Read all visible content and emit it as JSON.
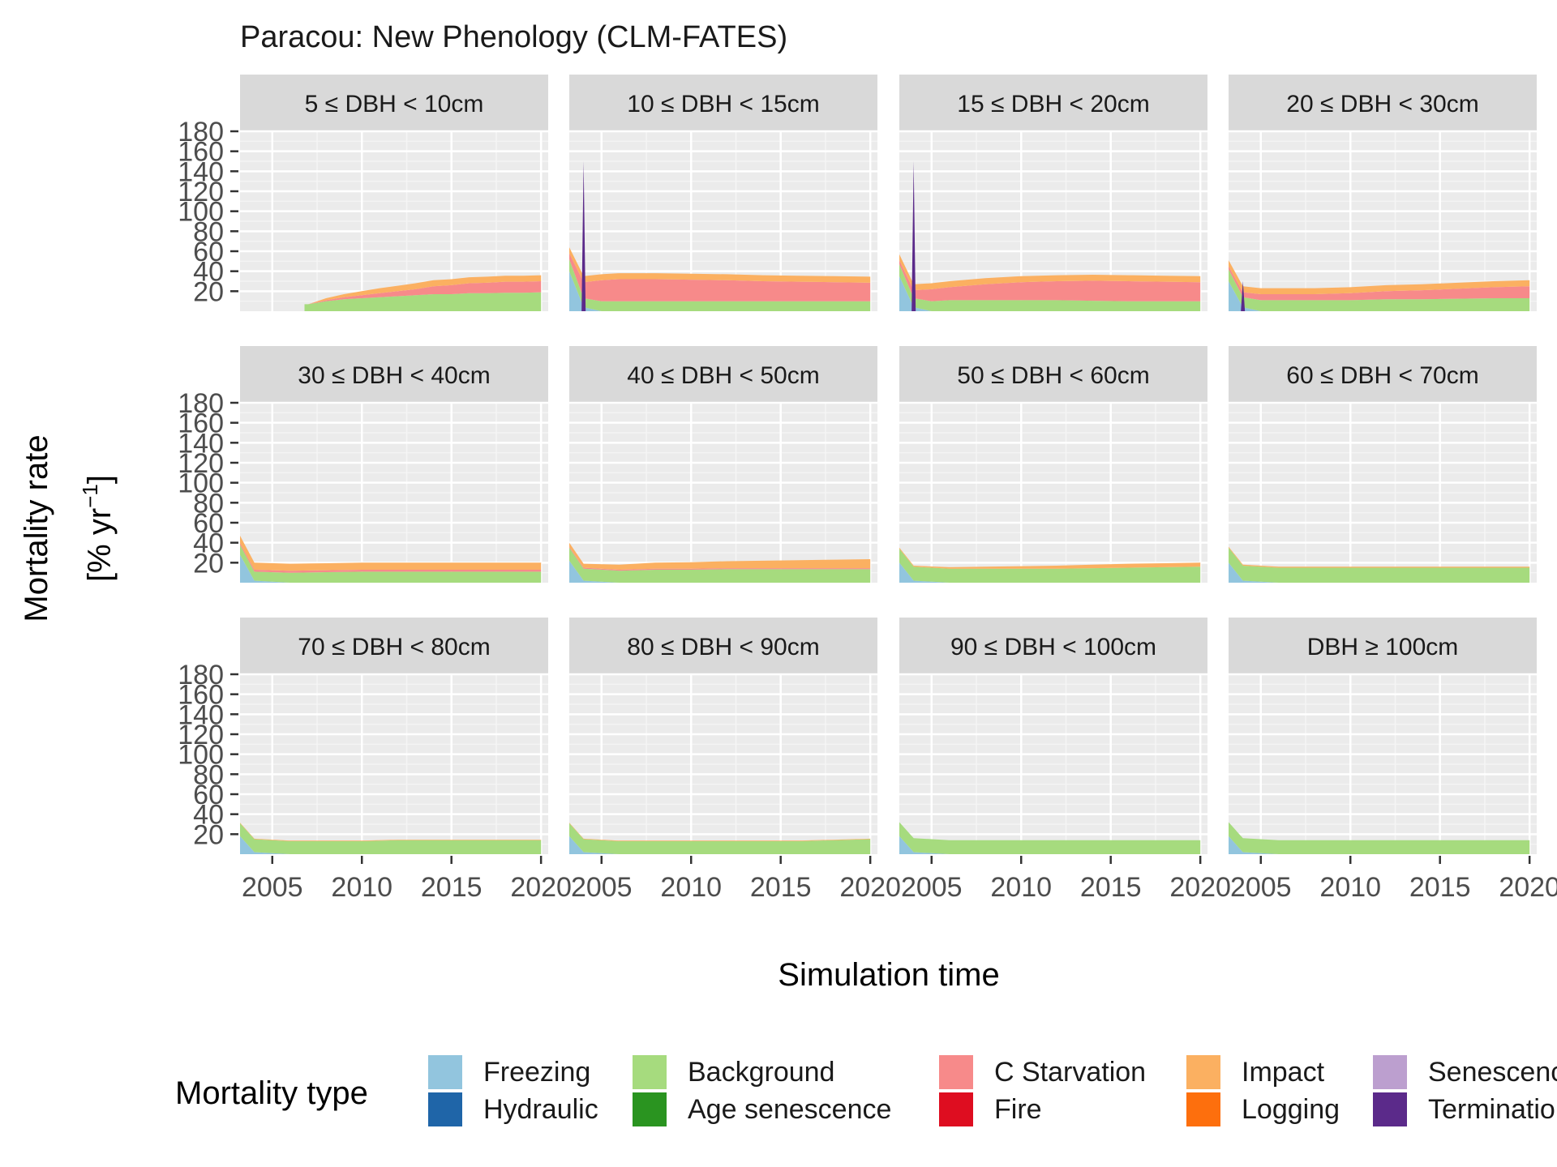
{
  "chart_data": {
    "type": "area",
    "stacked": true,
    "title": "Paracou: New Phenology (CLM-FATES)",
    "xlabel": "Simulation time",
    "ylabel_line1": "Mortality rate",
    "ylabel_line2": "[% yr",
    "ylabel_sup": "−1",
    "ylabel_end": "]",
    "x_ticks": [
      "2005",
      "2010",
      "2015",
      "2020"
    ],
    "x_tick_values": [
      2005,
      2010,
      2015,
      2020
    ],
    "xlim": [
      2003.2,
      2020.4
    ],
    "y_ticks": [
      "20",
      "40",
      "60",
      "80",
      "100",
      "120",
      "140",
      "160",
      "180"
    ],
    "y_tick_values": [
      20,
      40,
      60,
      80,
      100,
      120,
      140,
      160,
      180
    ],
    "ylim": [
      0,
      180
    ],
    "facets_layout": {
      "rows": 3,
      "cols": 4
    },
    "legend": {
      "title": "Mortality type",
      "position": "bottom",
      "items": [
        {
          "label": "Freezing",
          "color": "#92c5de"
        },
        {
          "label": "Hydraulic",
          "color": "#1f65a8"
        },
        {
          "label": "Background",
          "color": "#a6db7e"
        },
        {
          "label": "Age senescence",
          "color": "#2a9420"
        },
        {
          "label": "C Starvation",
          "color": "#f78a8a"
        },
        {
          "label": "Fire",
          "color": "#de0d20"
        },
        {
          "label": "Impact",
          "color": "#fbb061"
        },
        {
          "label": "Logging",
          "color": "#fd6f0d"
        },
        {
          "label": "Senescence",
          "color": "#bc9fcf"
        },
        {
          "label": "Termination",
          "color": "#5b2a8a"
        }
      ]
    },
    "series_order": [
      "Freezing",
      "Hydraulic",
      "Background",
      "Age senescence",
      "C Starvation",
      "Fire",
      "Impact",
      "Logging",
      "Senescence",
      "Termination"
    ],
    "panels": [
      {
        "label": "5 ≤ DBH < 10cm",
        "x": [
          2006.8,
          2007,
          2008,
          2009,
          2010,
          2011,
          2012,
          2013,
          2014,
          2015,
          2016,
          2017,
          2018,
          2019,
          2020
        ],
        "series": {
          "Background": [
            7,
            7,
            10,
            12,
            13,
            14,
            15,
            16,
            17,
            17,
            18,
            18,
            18.5,
            18.5,
            19
          ],
          "C Starvation": [
            0,
            0,
            1,
            2,
            3,
            4,
            5,
            6,
            8,
            9,
            10,
            10.5,
            11,
            11,
            11
          ],
          "Impact": [
            0,
            0,
            2,
            3,
            4,
            5,
            5.5,
            6,
            6,
            6,
            6,
            6,
            6,
            6,
            6
          ]
        }
      },
      {
        "label": "10 ≤ DBH < 15cm",
        "x": [
          2003.2,
          2004,
          2005,
          2006,
          2008,
          2010,
          2012,
          2014,
          2016,
          2018,
          2020
        ],
        "series": {
          "Freezing": [
            40,
            4,
            0,
            0,
            0,
            0,
            0,
            0,
            0,
            0,
            0
          ],
          "Background": [
            12,
            9,
            10,
            10,
            10,
            10,
            10,
            10,
            10,
            10,
            10
          ],
          "C Starvation": [
            6,
            16,
            21,
            22,
            22,
            21.5,
            21,
            20,
            19.5,
            19,
            18.5
          ],
          "Impact": [
            6,
            6,
            6,
            6,
            6,
            6,
            6,
            6,
            6,
            6,
            6
          ]
        },
        "spike": {
          "x": 2004.0,
          "value": 150,
          "series": "Termination"
        }
      },
      {
        "label": "15 ≤ DBH < 20cm",
        "x": [
          2003.2,
          2004,
          2005,
          2006,
          2008,
          2010,
          2012,
          2014,
          2016,
          2018,
          2020
        ],
        "series": {
          "Freezing": [
            35,
            4,
            0,
            0,
            0,
            0,
            0,
            0,
            0,
            0,
            0
          ],
          "Background": [
            12,
            9,
            10,
            11,
            11,
            11,
            11,
            10.5,
            10,
            10,
            10
          ],
          "C Starvation": [
            4,
            8,
            12,
            13,
            16,
            18,
            19,
            20,
            20,
            19.5,
            19
          ],
          "Impact": [
            6,
            6,
            6,
            6,
            6,
            6,
            6,
            6,
            6,
            6,
            6
          ]
        },
        "spike": {
          "x": 2004.0,
          "value": 150,
          "series": "Termination"
        }
      },
      {
        "label": "20 ≤ DBH < 30cm",
        "x": [
          2003.2,
          2004,
          2005,
          2006,
          2008,
          2010,
          2012,
          2014,
          2016,
          2018,
          2020
        ],
        "series": {
          "Freezing": [
            30,
            4,
            0,
            0,
            0,
            0,
            0,
            0,
            0,
            0,
            0
          ],
          "Background": [
            12,
            10,
            11,
            11,
            11,
            11,
            12,
            12,
            12.5,
            13,
            13
          ],
          "C Starvation": [
            3,
            5,
            6,
            6,
            6,
            7,
            8,
            9,
            10,
            11,
            12
          ],
          "Impact": [
            6,
            6,
            6,
            6,
            6,
            6,
            6,
            6,
            6,
            6,
            6
          ]
        },
        "spike": {
          "x": 2004.0,
          "value": 30,
          "series": "Termination"
        }
      },
      {
        "label": "30 ≤ DBH < 40cm",
        "x": [
          2003.2,
          2004,
          2006,
          2008,
          2010,
          2012,
          2014,
          2016,
          2018,
          2020
        ],
        "series": {
          "Freezing": [
            28,
            2,
            0,
            0,
            0,
            0,
            0,
            0,
            0,
            0
          ],
          "Background": [
            10,
            9,
            10,
            10.5,
            11,
            11,
            11,
            11,
            11,
            11
          ],
          "C Starvation": [
            2,
            2,
            2,
            2,
            2,
            2,
            2,
            2,
            2,
            2
          ],
          "Impact": [
            7,
            7,
            7,
            7,
            7,
            7,
            7,
            7,
            7,
            7
          ]
        }
      },
      {
        "label": "40 ≤ DBH < 50cm",
        "x": [
          2003.2,
          2004,
          2006,
          2008,
          2010,
          2012,
          2014,
          2016,
          2018,
          2020
        ],
        "series": {
          "Freezing": [
            22,
            2,
            0,
            0,
            0,
            0,
            0,
            0,
            0,
            0
          ],
          "Background": [
            13,
            12,
            12,
            13,
            13,
            13.5,
            13.5,
            13.5,
            13.5,
            13.5
          ],
          "C Starvation": [
            1,
            1,
            1,
            1,
            1,
            1,
            1,
            1,
            1,
            1
          ],
          "Impact": [
            4,
            4,
            5,
            6,
            6.5,
            7,
            7.5,
            8,
            8.5,
            9
          ]
        }
      },
      {
        "label": "50 ≤ DBH < 60cm",
        "x": [
          2003.2,
          2004,
          2006,
          2008,
          2010,
          2012,
          2014,
          2016,
          2018,
          2020
        ],
        "series": {
          "Freezing": [
            20,
            2,
            0,
            0,
            0,
            0,
            0,
            0,
            0,
            0
          ],
          "Background": [
            14,
            14,
            14,
            14,
            14,
            14,
            14.5,
            15,
            15.5,
            16
          ],
          "Impact": [
            1,
            1,
            1.5,
            2,
            2.5,
            3,
            3.5,
            4,
            4,
            4
          ]
        }
      },
      {
        "label": "60 ≤ DBH < 70cm",
        "x": [
          2003.2,
          2004,
          2006,
          2008,
          2010,
          2012,
          2014,
          2016,
          2018,
          2020
        ],
        "series": {
          "Freezing": [
            20,
            2,
            0,
            0,
            0,
            0,
            0,
            0,
            0,
            0
          ],
          "Background": [
            15,
            15,
            15,
            15,
            15,
            15,
            15,
            15,
            15,
            15
          ],
          "Impact": [
            1,
            1,
            1,
            1,
            1,
            1,
            1,
            1,
            1,
            1
          ]
        }
      },
      {
        "label": "70 ≤ DBH < 80cm",
        "x": [
          2003.2,
          2004,
          2006,
          2008,
          2010,
          2012,
          2014,
          2016,
          2018,
          2020
        ],
        "series": {
          "Freezing": [
            18,
            2,
            0,
            0,
            0,
            0,
            0,
            0,
            0,
            0
          ],
          "Background": [
            13,
            13,
            13,
            13,
            13,
            14,
            14,
            14,
            14,
            14
          ],
          "Impact": [
            0.5,
            0.5,
            0.5,
            0.5,
            0.5,
            0.5,
            0.5,
            0.5,
            0.5,
            0.5
          ]
        }
      },
      {
        "label": "80 ≤ DBH < 90cm",
        "x": [
          2003.2,
          2004,
          2006,
          2008,
          2010,
          2012,
          2014,
          2016,
          2018,
          2020
        ],
        "series": {
          "Freezing": [
            18,
            2,
            0,
            0,
            0,
            0,
            0,
            0,
            0,
            0
          ],
          "Background": [
            13,
            13,
            13,
            13,
            13,
            13,
            13,
            13,
            14,
            15
          ],
          "Impact": [
            0.5,
            0.5,
            0.5,
            0.5,
            0.5,
            0.5,
            0.5,
            0.5,
            0.5,
            0.5
          ]
        }
      },
      {
        "label": "90 ≤ DBH < 100cm",
        "x": [
          2003.2,
          2004,
          2006,
          2008,
          2010,
          2012,
          2014,
          2016,
          2018,
          2020
        ],
        "series": {
          "Freezing": [
            18,
            2,
            0,
            0,
            0,
            0,
            0,
            0,
            0,
            0
          ],
          "Background": [
            14,
            14,
            14,
            14,
            14,
            14,
            14,
            14,
            14,
            14
          ]
        }
      },
      {
        "label": "DBH ≥ 100cm",
        "x": [
          2003.2,
          2004,
          2006,
          2008,
          2010,
          2012,
          2014,
          2016,
          2018,
          2020
        ],
        "series": {
          "Freezing": [
            18,
            2,
            0,
            0,
            0,
            0,
            0,
            0,
            0,
            0
          ],
          "Background": [
            14,
            14,
            14,
            14,
            14,
            14,
            14,
            14,
            14,
            14
          ]
        }
      }
    ]
  }
}
